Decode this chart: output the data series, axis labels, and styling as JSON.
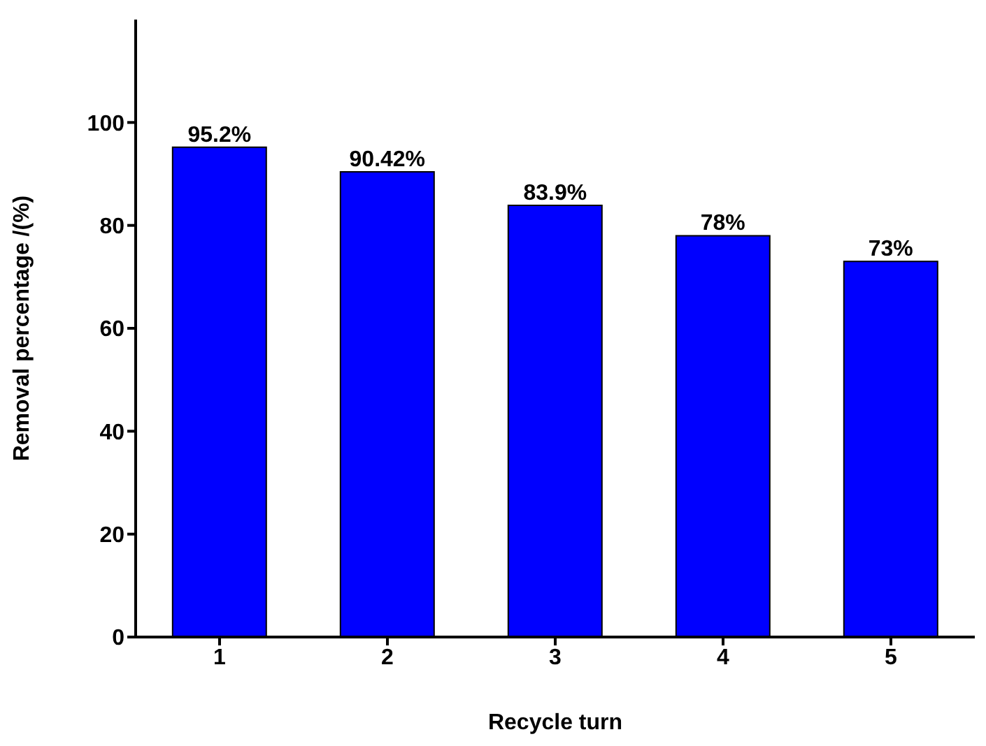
{
  "chart_data": {
    "type": "bar",
    "xlabel": "Recycle turn",
    "ylabel": "Removal percentage /(%)",
    "categories": [
      "1",
      "2",
      "3",
      "4",
      "5"
    ],
    "values": [
      95.2,
      90.42,
      83.9,
      78,
      73
    ],
    "value_labels": [
      "95.2%",
      "90.42%",
      "83.9%",
      "78%",
      "73%"
    ],
    "color": "#0000ff",
    "ylim": [
      0,
      120
    ],
    "yticks": [
      0,
      20,
      40,
      60,
      80,
      100
    ],
    "grid": false,
    "legend": false
  }
}
